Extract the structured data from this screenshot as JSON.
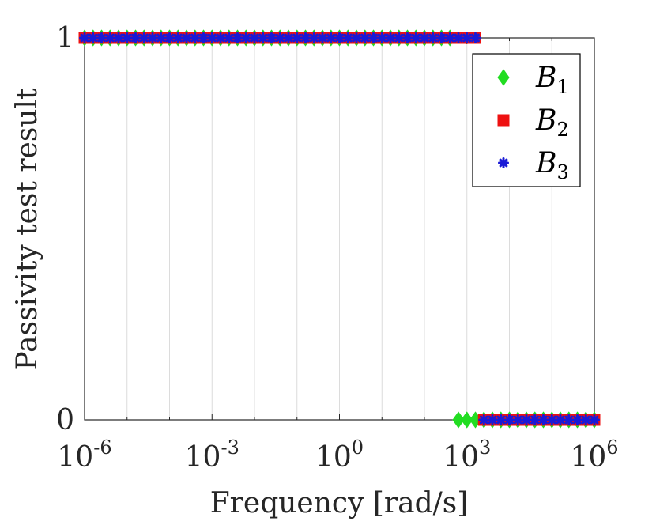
{
  "chart_data": {
    "type": "scatter",
    "title": "",
    "xlabel": "Frequency [rad/s]",
    "ylabel": "Passivity test result",
    "xscale": "log",
    "xlim_log10": [
      -6,
      6
    ],
    "ylim": [
      0,
      1
    ],
    "yticks": [
      0,
      1
    ],
    "ytick_labels": [
      "0",
      "1"
    ],
    "xticks_log10": [
      -6,
      -3,
      0,
      3,
      6
    ],
    "xtick_labels": [
      {
        "base": "10",
        "exp": "-6"
      },
      {
        "base": "10",
        "exp": "-3"
      },
      {
        "base": "10",
        "exp": "0"
      },
      {
        "base": "10",
        "exp": "3"
      },
      {
        "base": "10",
        "exp": "6"
      }
    ],
    "grid": true,
    "legend_position": "top-right",
    "n_points": 61,
    "series": [
      {
        "name": "B",
        "subscript": "1",
        "marker": "diamond",
        "color": "#22dd22",
        "fill": "#22dd22",
        "steps": [
          {
            "from_log10": -6,
            "to_log10": 2.8,
            "value": 1
          },
          {
            "from_log10": 2.8,
            "to_log10": 6,
            "value": 0
          }
        ]
      },
      {
        "name": "B",
        "subscript": "2",
        "marker": "square",
        "color": "#ee1111",
        "fill": "#ee1111",
        "steps": [
          {
            "from_log10": -6,
            "to_log10": 3.2,
            "value": 1
          },
          {
            "from_log10": 3.2,
            "to_log10": 6,
            "value": 0
          }
        ]
      },
      {
        "name": "B",
        "subscript": "3",
        "marker": "asterisk",
        "color": "#1a1ad6",
        "fill": "#1a1ad6",
        "steps": [
          {
            "from_log10": -6,
            "to_log10": 3.2,
            "value": 1
          },
          {
            "from_log10": 3.2,
            "to_log10": 6,
            "value": 0
          }
        ]
      }
    ]
  }
}
